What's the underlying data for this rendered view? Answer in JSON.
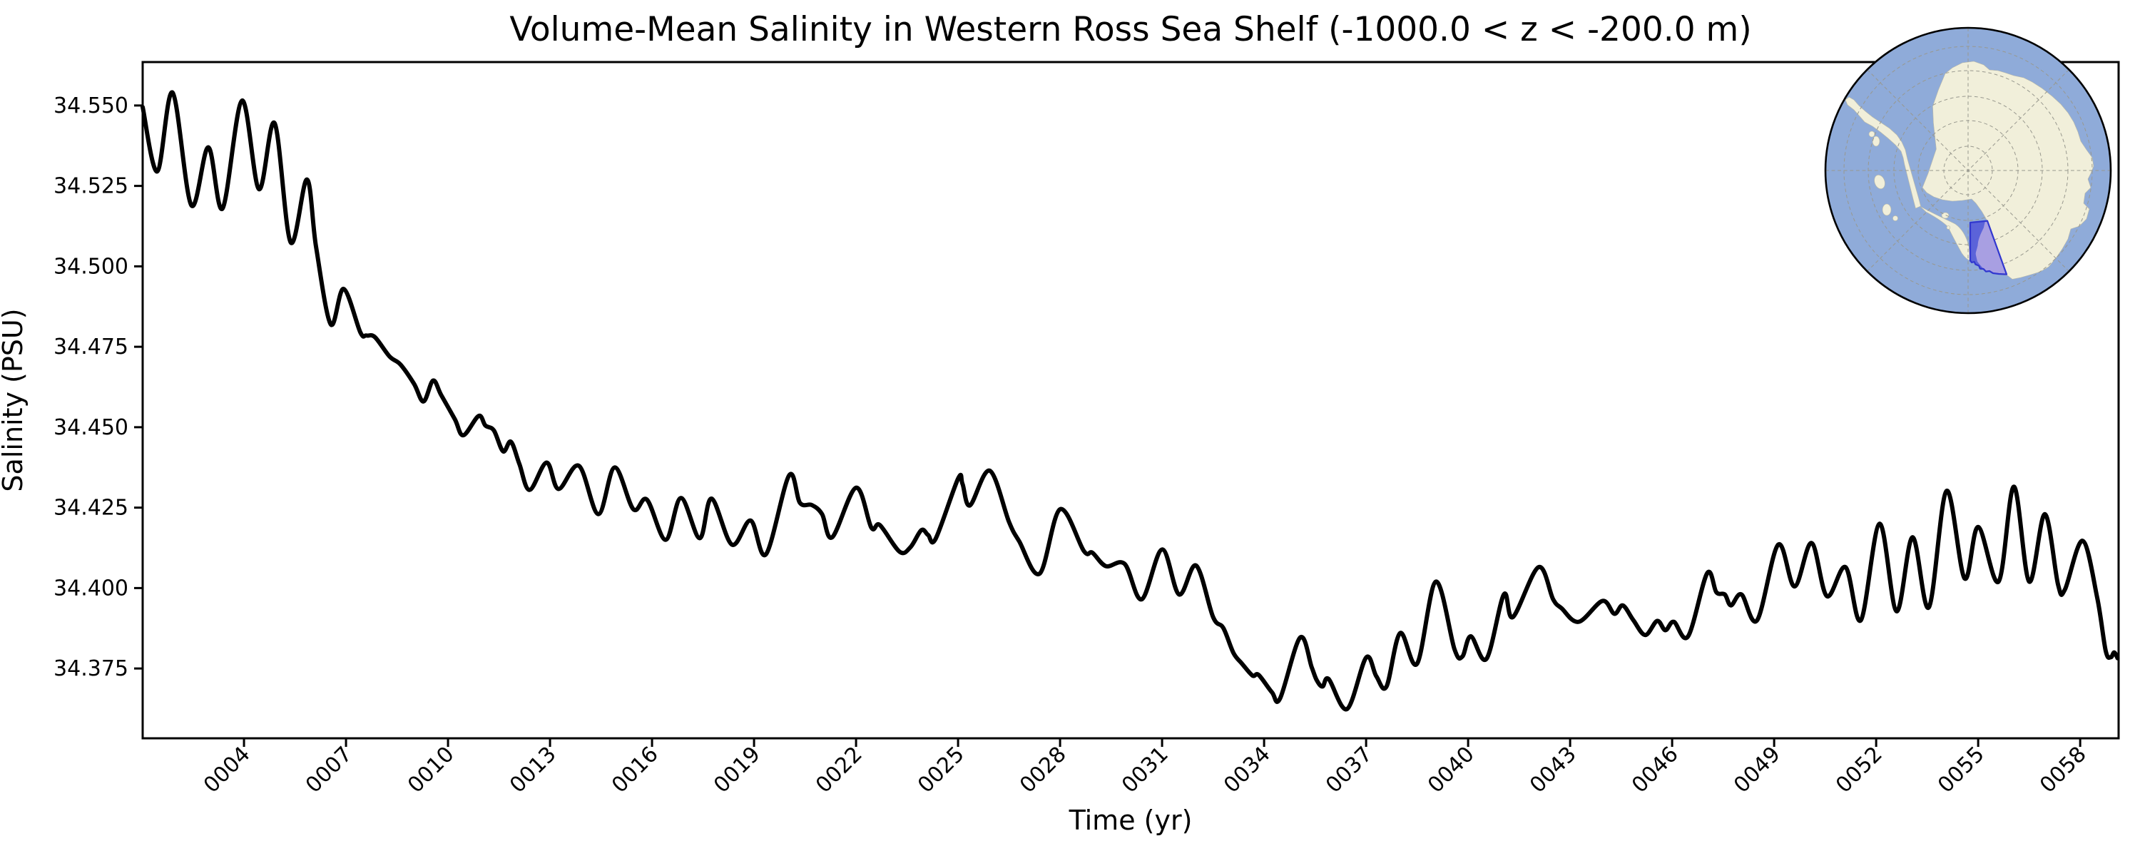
{
  "figure": {
    "background": "#ffffff"
  },
  "chart_data": {
    "type": "line",
    "title": "Volume-Mean Salinity in Western Ross Sea Shelf (-1000.0 < z < -200.0 m)",
    "xlabel": "Time (yr)",
    "ylabel": "Salinity (PSU)",
    "xlim": [
      1.02,
      59.13
    ],
    "ylim": [
      34.3533,
      34.5635
    ],
    "grid": false,
    "legend_position": "none",
    "x_ticks": {
      "values": [
        4,
        7,
        10,
        13,
        16,
        19,
        22,
        25,
        28,
        31,
        34,
        37,
        40,
        43,
        46,
        49,
        52,
        55,
        58
      ],
      "labels": [
        "0004",
        "0007",
        "0010",
        "0013",
        "0016",
        "0019",
        "0022",
        "0025",
        "0028",
        "0031",
        "0034",
        "0037",
        "0040",
        "0043",
        "0046",
        "0049",
        "0052",
        "0055",
        "0058"
      ],
      "rotation_deg": 45
    },
    "y_ticks": {
      "values": [
        34.375,
        34.4,
        34.425,
        34.45,
        34.475,
        34.5,
        34.525,
        34.55
      ],
      "labels": [
        "34.375",
        "34.400",
        "34.425",
        "34.450",
        "34.475",
        "34.500",
        "34.525",
        "34.550"
      ]
    },
    "series": [
      {
        "name": "volume-mean salinity",
        "color": "#000000",
        "line_width": 6,
        "points": [
          [
            1.02,
            34.5495
          ],
          [
            1.45,
            34.5295
          ],
          [
            1.9,
            34.554
          ],
          [
            2.45,
            34.519
          ],
          [
            2.95,
            34.537
          ],
          [
            3.37,
            34.518
          ],
          [
            3.94,
            34.5515
          ],
          [
            4.44,
            34.524
          ],
          [
            4.9,
            34.5445
          ],
          [
            5.37,
            34.5075
          ],
          [
            5.85,
            34.527
          ],
          [
            6.12,
            34.506
          ],
          [
            6.55,
            34.482
          ],
          [
            6.93,
            34.493
          ],
          [
            7.42,
            34.4795
          ],
          [
            7.6,
            34.4785
          ],
          [
            7.85,
            34.478
          ],
          [
            8.28,
            34.472
          ],
          [
            8.6,
            34.4695
          ],
          [
            9.0,
            34.4635
          ],
          [
            9.28,
            34.458
          ],
          [
            9.56,
            34.4645
          ],
          [
            9.8,
            34.46
          ],
          [
            10.2,
            34.4525
          ],
          [
            10.45,
            34.4475
          ],
          [
            10.9,
            34.4535
          ],
          [
            11.1,
            34.4505
          ],
          [
            11.35,
            34.449
          ],
          [
            11.62,
            34.4425
          ],
          [
            11.85,
            34.4455
          ],
          [
            12.1,
            34.4385
          ],
          [
            12.4,
            34.4305
          ],
          [
            12.9,
            34.439
          ],
          [
            13.25,
            34.4308
          ],
          [
            13.85,
            34.438
          ],
          [
            14.42,
            34.423
          ],
          [
            14.9,
            34.4375
          ],
          [
            15.45,
            34.4245
          ],
          [
            15.85,
            34.4275
          ],
          [
            16.4,
            34.415
          ],
          [
            16.85,
            34.428
          ],
          [
            17.4,
            34.4155
          ],
          [
            17.75,
            34.4278
          ],
          [
            18.35,
            34.4135
          ],
          [
            18.9,
            34.421
          ],
          [
            19.35,
            34.4105
          ],
          [
            20.03,
            34.435
          ],
          [
            20.35,
            34.4265
          ],
          [
            20.7,
            34.4258
          ],
          [
            21.0,
            34.423
          ],
          [
            21.3,
            34.4158
          ],
          [
            22.0,
            34.4312
          ],
          [
            22.45,
            34.4188
          ],
          [
            22.7,
            34.4196
          ],
          [
            23.28,
            34.4113
          ],
          [
            23.6,
            34.4127
          ],
          [
            23.92,
            34.418
          ],
          [
            24.12,
            34.4165
          ],
          [
            24.34,
            34.4153
          ],
          [
            25.0,
            34.434
          ],
          [
            25.13,
            34.4324
          ],
          [
            25.35,
            34.4257
          ],
          [
            25.93,
            34.4365
          ],
          [
            26.5,
            34.4205
          ],
          [
            26.8,
            34.4145
          ],
          [
            27.4,
            34.4045
          ],
          [
            28.0,
            34.4245
          ],
          [
            28.7,
            34.4115
          ],
          [
            28.95,
            34.411
          ],
          [
            29.35,
            34.4068
          ],
          [
            29.9,
            34.4075
          ],
          [
            30.4,
            34.3965
          ],
          [
            31.0,
            34.412
          ],
          [
            31.5,
            34.398
          ],
          [
            32.0,
            34.407
          ],
          [
            32.5,
            34.391
          ],
          [
            32.8,
            34.3876
          ],
          [
            33.1,
            34.3798
          ],
          [
            33.35,
            34.3765
          ],
          [
            33.66,
            34.3728
          ],
          [
            33.84,
            34.373
          ],
          [
            34.23,
            34.3676
          ],
          [
            34.47,
            34.3657
          ],
          [
            35.06,
            34.3846
          ],
          [
            35.4,
            34.3754
          ],
          [
            35.55,
            34.3713
          ],
          [
            35.72,
            34.3694
          ],
          [
            35.9,
            34.3717
          ],
          [
            36.44,
            34.3624
          ],
          [
            37.0,
            34.3784
          ],
          [
            37.3,
            34.3726
          ],
          [
            37.6,
            34.3694
          ],
          [
            38.0,
            34.386
          ],
          [
            38.5,
            34.3765
          ],
          [
            39.05,
            34.402
          ],
          [
            39.6,
            34.381
          ],
          [
            39.83,
            34.3787
          ],
          [
            40.08,
            34.385
          ],
          [
            40.54,
            34.378
          ],
          [
            41.05,
            34.398
          ],
          [
            41.32,
            34.391
          ],
          [
            42.07,
            34.4065
          ],
          [
            42.5,
            34.3965
          ],
          [
            42.75,
            34.3937
          ],
          [
            43.25,
            34.3895
          ],
          [
            43.95,
            34.396
          ],
          [
            44.3,
            34.392
          ],
          [
            44.55,
            34.3946
          ],
          [
            44.86,
            34.39
          ],
          [
            45.21,
            34.3854
          ],
          [
            45.56,
            34.3898
          ],
          [
            45.8,
            34.3869
          ],
          [
            46.05,
            34.3895
          ],
          [
            46.47,
            34.385
          ],
          [
            47.03,
            34.4046
          ],
          [
            47.3,
            34.3987
          ],
          [
            47.55,
            34.398
          ],
          [
            47.73,
            34.3946
          ],
          [
            48.04,
            34.398
          ],
          [
            48.5,
            34.39
          ],
          [
            49.12,
            34.4135
          ],
          [
            49.6,
            34.4005
          ],
          [
            50.1,
            34.414
          ],
          [
            50.55,
            34.3975
          ],
          [
            51.1,
            34.4065
          ],
          [
            51.55,
            34.39
          ],
          [
            52.1,
            34.42
          ],
          [
            52.6,
            34.3928
          ],
          [
            53.07,
            34.4158
          ],
          [
            53.55,
            34.394
          ],
          [
            54.07,
            34.4302
          ],
          [
            54.6,
            34.403
          ],
          [
            55.0,
            34.419
          ],
          [
            55.6,
            34.402
          ],
          [
            56.05,
            34.4315
          ],
          [
            56.5,
            34.402
          ],
          [
            56.96,
            34.423
          ],
          [
            57.35,
            34.401
          ],
          [
            57.55,
            34.3995
          ],
          [
            58.07,
            34.4147
          ],
          [
            58.5,
            34.397
          ],
          [
            58.75,
            34.3805
          ],
          [
            58.9,
            34.3785
          ],
          [
            59.0,
            34.38
          ],
          [
            59.1,
            34.3782
          ]
        ]
      }
    ],
    "inset_map": {
      "description": "South polar stereographic locator map of Antarctica",
      "highlight_region": "Western Ross Sea Shelf",
      "colors": {
        "ocean": "#8fabd9",
        "land": "#f1efda",
        "land_edge": "#b9b8a6",
        "graticule": "#98988e",
        "highlight_over_ocean": "#5b63d9",
        "highlight_over_land": "#a89fe2",
        "highlight_border": "#3137cf",
        "outline": "#000000"
      }
    }
  }
}
